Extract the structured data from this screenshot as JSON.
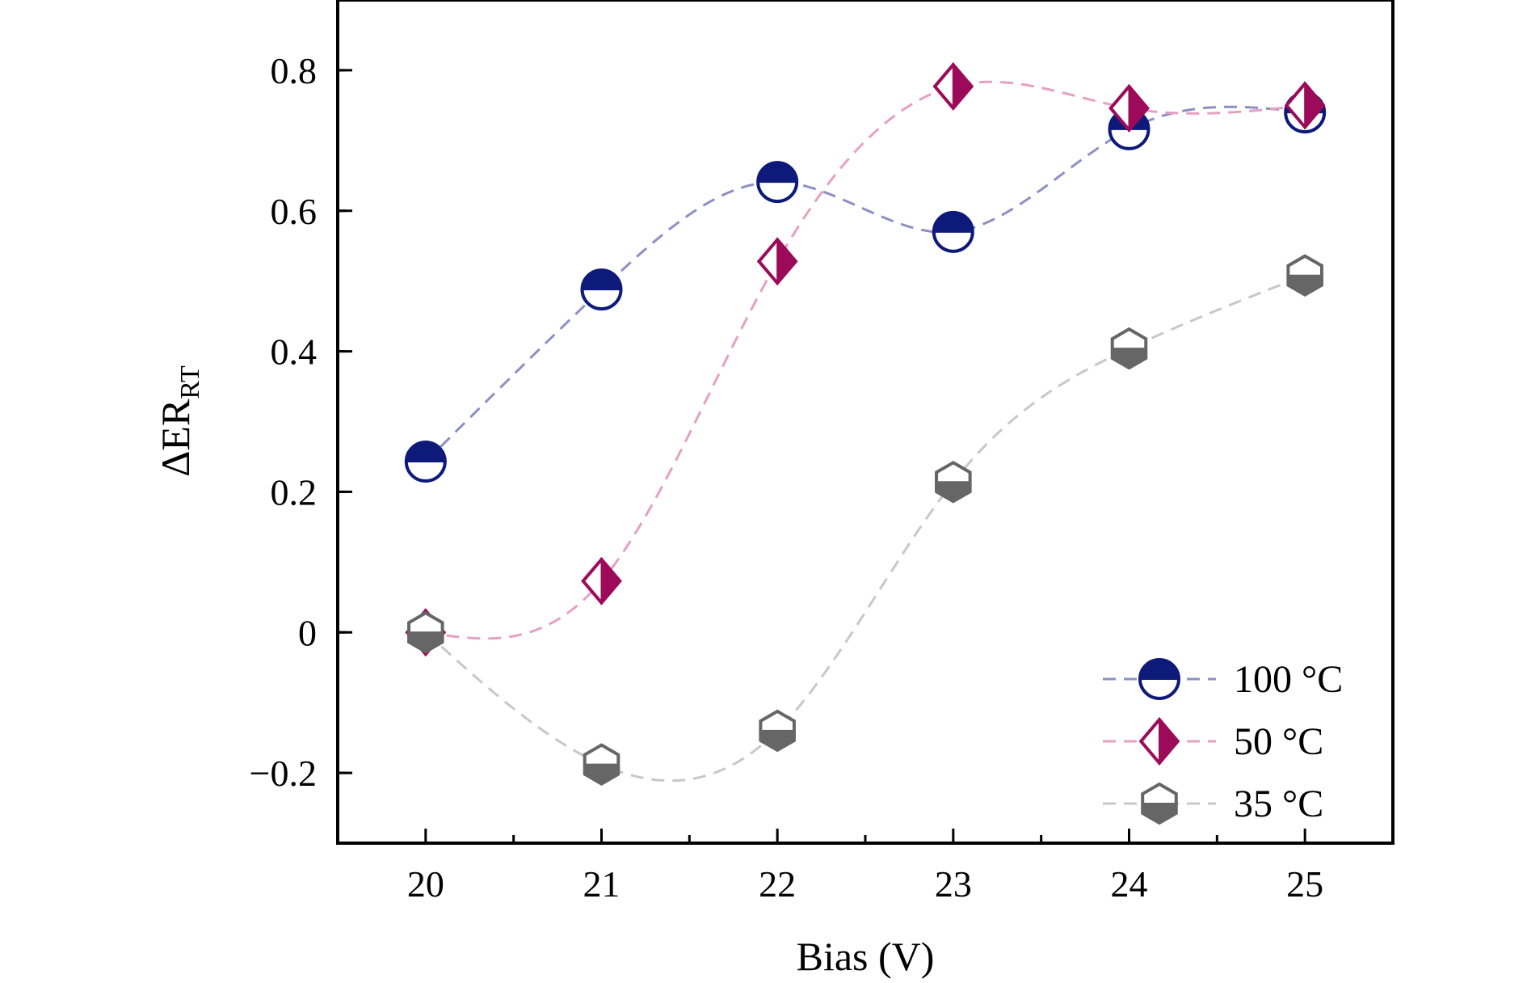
{
  "chart_data": {
    "type": "scatter",
    "xlabel": "Bias (V)",
    "ylabel": {
      "main": "ΔER",
      "sub": "RT"
    },
    "xlim": [
      19.5,
      25.5
    ],
    "ylim": [
      -0.3,
      0.9
    ],
    "xticks": [
      20,
      21,
      22,
      23,
      24,
      25
    ],
    "xtick_labels": [
      "20",
      "21",
      "22",
      "23",
      "24",
      "25"
    ],
    "yticks": [
      -0.2,
      0,
      0.2,
      0.4,
      0.6,
      0.8
    ],
    "ytick_labels": [
      "−0.2",
      "0",
      "0.2",
      "0.4",
      "0.6",
      "0.8"
    ],
    "grid": false,
    "legend_position": "bottom-right",
    "x": [
      20,
      21,
      22,
      23,
      24,
      25
    ],
    "series": [
      {
        "name": "100 °C",
        "marker": "half-filled-circle",
        "color": "#0d1a7a",
        "line_color": "#8c90c4",
        "values": [
          0.243,
          0.488,
          0.641,
          0.57,
          0.716,
          0.74
        ]
      },
      {
        "name": "50 °C",
        "marker": "half-filled-diamond",
        "color": "#9c0a5a",
        "line_color": "#e6a0c4",
        "values": [
          0.0,
          0.073,
          0.528,
          0.777,
          0.746,
          0.75
        ]
      },
      {
        "name": "35 °C",
        "marker": "half-filled-hexagon",
        "color": "#666666",
        "line_color": "#c8c8c8",
        "values": [
          0.0,
          -0.188,
          -0.14,
          0.214,
          0.404,
          0.508
        ]
      }
    ]
  }
}
